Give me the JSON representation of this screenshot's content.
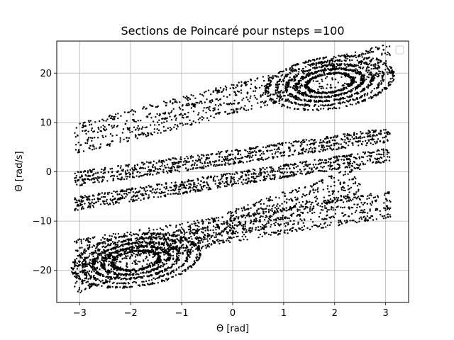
{
  "chart_data": {
    "type": "scatter",
    "title": "Sections de Poincaré pour nsteps =100",
    "xlabel": "Θ [rad]",
    "ylabel": "Θ̇ [rad/s]",
    "xlim": [
      -3.45,
      3.45
    ],
    "ylim": [
      -26.5,
      26.5
    ],
    "xticks": [
      -3,
      -2,
      -1,
      0,
      1,
      2,
      3
    ],
    "yticks": [
      -20,
      -10,
      0,
      10,
      20
    ],
    "grid": true,
    "legend": "top-right",
    "marker_color": "#000000",
    "bands": [
      {
        "x": [
          -3.1,
          3.1
        ],
        "y_start": 6.5,
        "y_end": 23,
        "spread": 3.2
      },
      {
        "x": [
          -3.1,
          3.1
        ],
        "y_start": -1.5,
        "y_end": 7.5,
        "spread": 1.5
      },
      {
        "x": [
          -3.1,
          3.1
        ],
        "y_start": -6.5,
        "y_end": 3.5,
        "spread": 1.4
      },
      {
        "x": [
          -3.1,
          3.1
        ],
        "y_start": -16.5,
        "y_end": -6.5,
        "spread": 2.8
      },
      {
        "x": [
          -3.1,
          2.5
        ],
        "y_start": -22,
        "y_end": -1.5,
        "spread": 3.0
      }
    ],
    "lobes": [
      {
        "cx": 1.9,
        "cy": 18,
        "rx": 1.3,
        "ry": 5.5
      },
      {
        "cx": -1.9,
        "cy": -18,
        "rx": 1.3,
        "ry": 5.5
      }
    ]
  }
}
